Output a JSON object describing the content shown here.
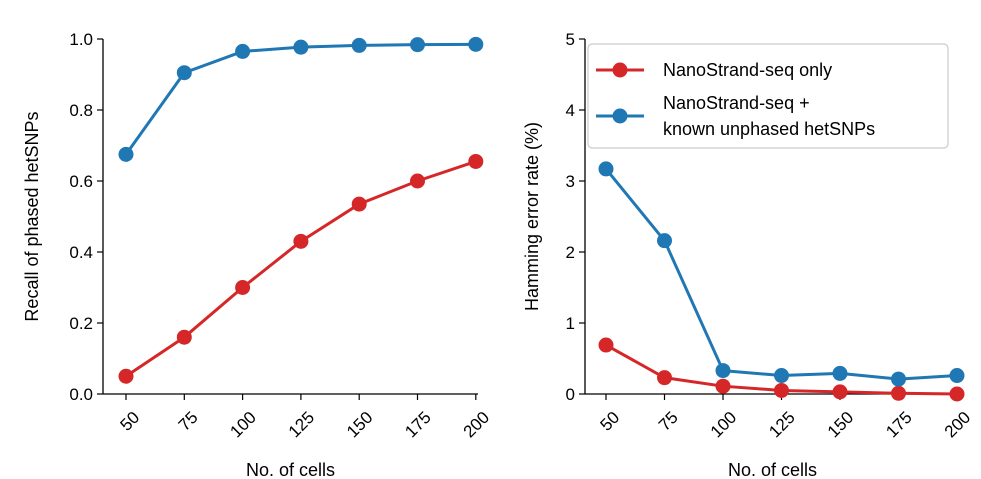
{
  "colors": {
    "red": "#d62728",
    "blue": "#1f77b4"
  },
  "legend": {
    "nanostrand_only": "NanoStrand-seq only",
    "nanostrand_plus_line1": "NanoStrand-seq +",
    "nanostrand_plus_line2": "known unphased hetSNPs"
  },
  "chart_data": [
    {
      "type": "line",
      "title": "",
      "xlabel": "No. of cells",
      "ylabel": "Recall of phased hetSNPs",
      "categories": [
        "50",
        "75",
        "100",
        "125",
        "150",
        "175",
        "200"
      ],
      "yticks": [
        "0.0",
        "0.2",
        "0.4",
        "0.6",
        "0.8",
        "1.0"
      ],
      "ylim": [
        0,
        1.0
      ],
      "grid": false,
      "series": [
        {
          "name": "NanoStrand-seq only",
          "color": "red",
          "values": [
            0.05,
            0.16,
            0.3,
            0.43,
            0.535,
            0.6,
            0.655
          ]
        },
        {
          "name": "NanoStrand-seq + known unphased hetSNPs",
          "color": "blue",
          "values": [
            0.675,
            0.905,
            0.965,
            0.977,
            0.982,
            0.984,
            0.985
          ]
        }
      ]
    },
    {
      "type": "line",
      "title": "",
      "xlabel": "No. of cells",
      "ylabel": "Hamming error rate (%)",
      "categories": [
        "50",
        "75",
        "100",
        "125",
        "150",
        "175",
        "200"
      ],
      "yticks": [
        "0",
        "1",
        "2",
        "3",
        "4",
        "5"
      ],
      "ylim": [
        0,
        5
      ],
      "grid": false,
      "legend": "top-right",
      "series": [
        {
          "name": "NanoStrand-seq only",
          "color": "red",
          "values": [
            0.69,
            0.23,
            0.11,
            0.05,
            0.03,
            0.01,
            0.0
          ]
        },
        {
          "name": "NanoStrand-seq + known unphased hetSNPs",
          "color": "blue",
          "values": [
            3.17,
            2.16,
            0.33,
            0.26,
            0.29,
            0.21,
            0.26
          ]
        }
      ]
    }
  ]
}
